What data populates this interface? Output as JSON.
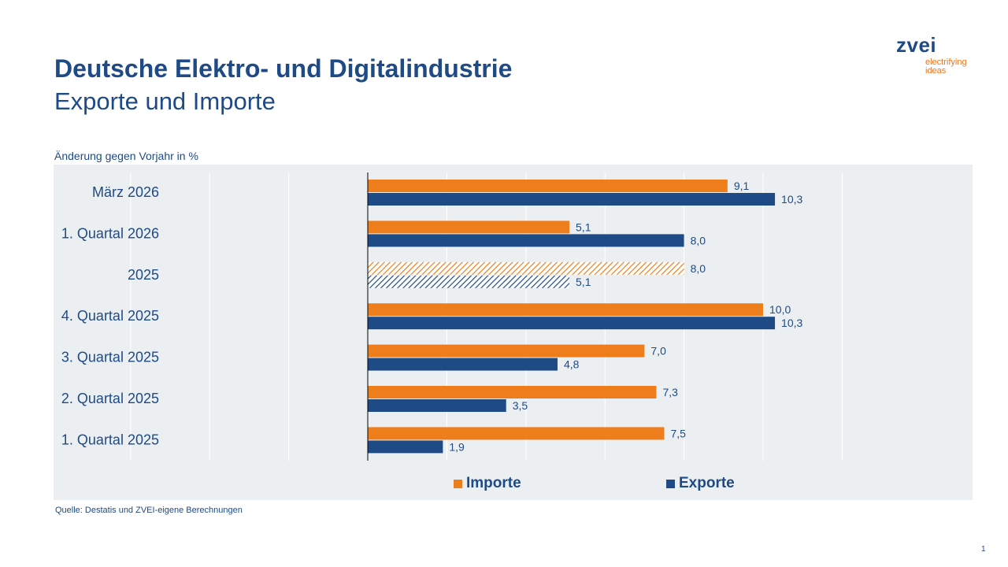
{
  "header": {
    "title": "Deutsche Elektro- und Digitalindustrie",
    "subtitle": "Exporte und Importe"
  },
  "logo": {
    "wordmark": "zvei",
    "tagline_1": "electrifying",
    "tagline_2": "ideas"
  },
  "footer": {
    "source": "Quelle: Destatis und ZVEI-eigene Berechnungen",
    "page_number": "1"
  },
  "colors": {
    "imports": "#ee7d1b",
    "exports": "#1e4a86",
    "panel": "#eceff1",
    "text": "#1e4a86"
  },
  "chart_data": {
    "type": "bar",
    "orientation": "horizontal",
    "ylabel": "Änderung gegen Vorjahr in %",
    "categories": [
      "März 2026",
      "1. Quartal 2026",
      "2025",
      "4. Quartal 2025",
      "3. Quartal 2025",
      "2. Quartal 2025",
      "1. Quartal 2025"
    ],
    "series": [
      {
        "name": "Importe",
        "color": "#ee7d1b",
        "values": [
          9.1,
          5.1,
          8.0,
          10.0,
          7.0,
          7.3,
          7.5
        ],
        "labels": [
          "9,1",
          "5,1",
          "8,0",
          "10,0",
          "7,0",
          "7,3",
          "7,5"
        ]
      },
      {
        "name": "Exporte",
        "color": "#1e4a86",
        "values": [
          10.3,
          8.0,
          5.1,
          10.3,
          4.8,
          3.5,
          1.9
        ],
        "labels": [
          "10,3",
          "8,0",
          "5,1",
          "10,3",
          "4,8",
          "3,5",
          "1,9"
        ]
      }
    ],
    "hatched_categories": [
      "2025"
    ],
    "xlim": [
      -8,
      14
    ],
    "grid_step": 2,
    "grid": true,
    "legend_position": "bottom"
  }
}
